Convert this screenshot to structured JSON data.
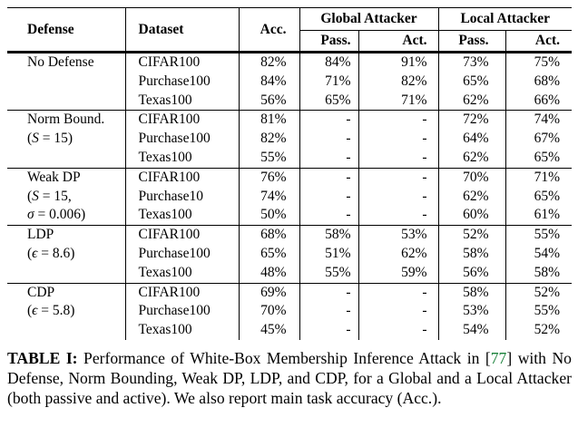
{
  "colors": {
    "citation_green": "#178038",
    "text": "#000000",
    "background": "#ffffff",
    "rule": "#000000"
  },
  "table": {
    "headers": {
      "defense": "Defense",
      "dataset": "Dataset",
      "acc": "Acc.",
      "global_attacker": "Global Attacker",
      "local_attacker": "Local Attacker",
      "passive": "Pass.",
      "active": "Act."
    },
    "groups": [
      {
        "defense": {
          "name": "No Defense",
          "sub": []
        },
        "rows": [
          {
            "dataset": "CIFAR100",
            "acc": "82%",
            "global_pass": "84%",
            "global_act": "91%",
            "local_pass": "73%",
            "local_act": "75%"
          },
          {
            "dataset": "Purchase100",
            "acc": "84%",
            "global_pass": "71%",
            "global_act": "82%",
            "local_pass": "65%",
            "local_act": "68%"
          },
          {
            "dataset": "Texas100",
            "acc": "56%",
            "global_pass": "65%",
            "global_act": "71%",
            "local_pass": "62%",
            "local_act": "66%"
          }
        ]
      },
      {
        "defense": {
          "name": "Norm Bound.",
          "sub": [
            {
              "pre": "(",
              "var": "S",
              "post": " = 15)"
            }
          ]
        },
        "rows": [
          {
            "dataset": "CIFAR100",
            "acc": "81%",
            "global_pass": "-",
            "global_act": "-",
            "local_pass": "72%",
            "local_act": "74%"
          },
          {
            "dataset": "Purchase100",
            "acc": "82%",
            "global_pass": "-",
            "global_act": "-",
            "local_pass": "64%",
            "local_act": "67%"
          },
          {
            "dataset": "Texas100",
            "acc": "55%",
            "global_pass": "-",
            "global_act": "-",
            "local_pass": "62%",
            "local_act": "65%"
          }
        ]
      },
      {
        "defense": {
          "name": "Weak DP",
          "sub": [
            {
              "pre": "(",
              "var": "S",
              "post": " = 15,"
            },
            {
              "pre": "",
              "var": "σ",
              "post": " = 0.006)"
            }
          ]
        },
        "rows": [
          {
            "dataset": "CIFAR100",
            "acc": "76%",
            "global_pass": "-",
            "global_act": "-",
            "local_pass": "70%",
            "local_act": "71%"
          },
          {
            "dataset": "Purchase10",
            "acc": "74%",
            "global_pass": "-",
            "global_act": "-",
            "local_pass": "62%",
            "local_act": "65%"
          },
          {
            "dataset": "Texas100",
            "acc": "50%",
            "global_pass": "-",
            "global_act": "-",
            "local_pass": "60%",
            "local_act": "61%"
          }
        ]
      },
      {
        "defense": {
          "name": "LDP",
          "sub": [
            {
              "pre": "(",
              "var": "ϵ",
              "post": " = 8.6)"
            }
          ]
        },
        "rows": [
          {
            "dataset": "CIFAR100",
            "acc": "68%",
            "global_pass": "58%",
            "global_act": "53%",
            "local_pass": "52%",
            "local_act": "55%"
          },
          {
            "dataset": "Purchase100",
            "acc": "65%",
            "global_pass": "51%",
            "global_act": "62%",
            "local_pass": "58%",
            "local_act": "54%"
          },
          {
            "dataset": "Texas100",
            "acc": "48%",
            "global_pass": "55%",
            "global_act": "59%",
            "local_pass": "56%",
            "local_act": "58%"
          }
        ]
      },
      {
        "defense": {
          "name": "CDP",
          "sub": [
            {
              "pre": "(",
              "var": "ϵ",
              "post": " = 5.8)"
            }
          ]
        },
        "rows": [
          {
            "dataset": "CIFAR100",
            "acc": "69%",
            "global_pass": "-",
            "global_act": "-",
            "local_pass": "58%",
            "local_act": "52%"
          },
          {
            "dataset": "Purchase100",
            "acc": "70%",
            "global_pass": "-",
            "global_act": "-",
            "local_pass": "53%",
            "local_act": "55%"
          },
          {
            "dataset": "Texas100",
            "acc": "45%",
            "global_pass": "-",
            "global_act": "-",
            "local_pass": "54%",
            "local_act": "52%"
          }
        ]
      }
    ]
  },
  "caption": {
    "label": "TABLE I:",
    "before_cite": "Performance of White-Box Membership Inference Attack in [",
    "cite": "77",
    "after_cite": "] with No Defense, Norm Bounding, Weak DP, LDP, and CDP, for a Global and a Local Attacker (both passive and active). We also report main task accuracy (Acc.)."
  }
}
